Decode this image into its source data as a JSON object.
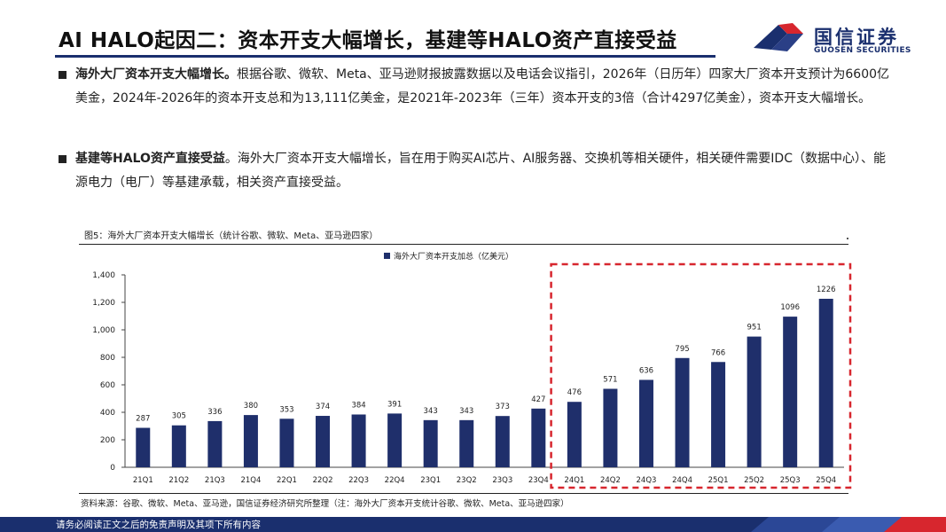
{
  "header": {
    "title": "AI HALO起因二：资本开支大幅增长，基建等HALO资产直接受益",
    "logo_cn": "国信证券",
    "logo_en": "GUOSEN SECURITIES",
    "brand_color": "#1a2f6e",
    "accent_color": "#d7262e"
  },
  "bullets": [
    {
      "bold": "海外大厂资本开支大幅增长。",
      "text": "根据谷歌、微软、Meta、亚马逊财报披露数据以及电话会议指引，2026年（日历年）四家大厂资本开支预计为6600亿美金，2024年-2026年的资本开支总和为13,111亿美金，是2021年-2023年（三年）资本开支的3倍（合计4297亿美金），资本开支大幅增长。"
    },
    {
      "bold": "基建等HALO资产直接受益",
      "text": "。海外大厂资本开支大幅增长，旨在用于购买AI芯片、AI服务器、交换机等相关硬件，相关硬件需要IDC（数据中心）、能源电力（电厂）等基建承载，相关资产直接受益。"
    }
  ],
  "figure": {
    "title": "图5：海外大厂资本开支大幅增长（统计谷歌、微软、Meta、亚马逊四家）",
    "source": "资料来源：谷歌、微软、Meta、亚马逊，国信证券经济研究所整理（注：海外大厂资本开支统计谷歌、微软、Meta、亚马逊四家）"
  },
  "chart_data": {
    "type": "bar",
    "title": "",
    "legend": "海外大厂资本开支加总（亿美元）",
    "legend_position": "top-center",
    "categories": [
      "21Q1",
      "21Q2",
      "21Q3",
      "21Q4",
      "22Q1",
      "22Q2",
      "22Q3",
      "22Q4",
      "23Q1",
      "23Q2",
      "23Q3",
      "23Q4",
      "24Q1",
      "24Q2",
      "24Q3",
      "24Q4",
      "25Q1",
      "25Q2",
      "25Q3",
      "25Q4"
    ],
    "values": [
      287,
      305,
      336,
      380,
      353,
      374,
      384,
      391,
      343,
      343,
      373,
      427,
      476,
      571,
      636,
      795,
      766,
      951,
      1096,
      1226
    ],
    "value_labels": [
      "287",
      "305",
      "336",
      "380",
      "353",
      "374",
      "384",
      "391",
      "343",
      "343",
      "373",
      "427",
      "476",
      "571",
      "636",
      "795",
      "766",
      "951",
      "1096",
      "1226"
    ],
    "ylim": [
      0,
      1400
    ],
    "yticks": [
      0,
      200,
      400,
      600,
      800,
      1000,
      1200,
      1400
    ],
    "ytick_labels": [
      "0",
      "200",
      "400",
      "600",
      "800",
      "1,000",
      "1,200",
      "1,400"
    ],
    "xlabel": "",
    "ylabel": "",
    "bar_color": "#1f2f6b",
    "highlight": {
      "from_category": "24Q1",
      "to_category": "25Q4",
      "style": "red-dashed-box",
      "color": "#d7262e"
    }
  },
  "footer": {
    "disclaimer": "请务必阅读正文之后的免责声明及其项下所有内容"
  }
}
